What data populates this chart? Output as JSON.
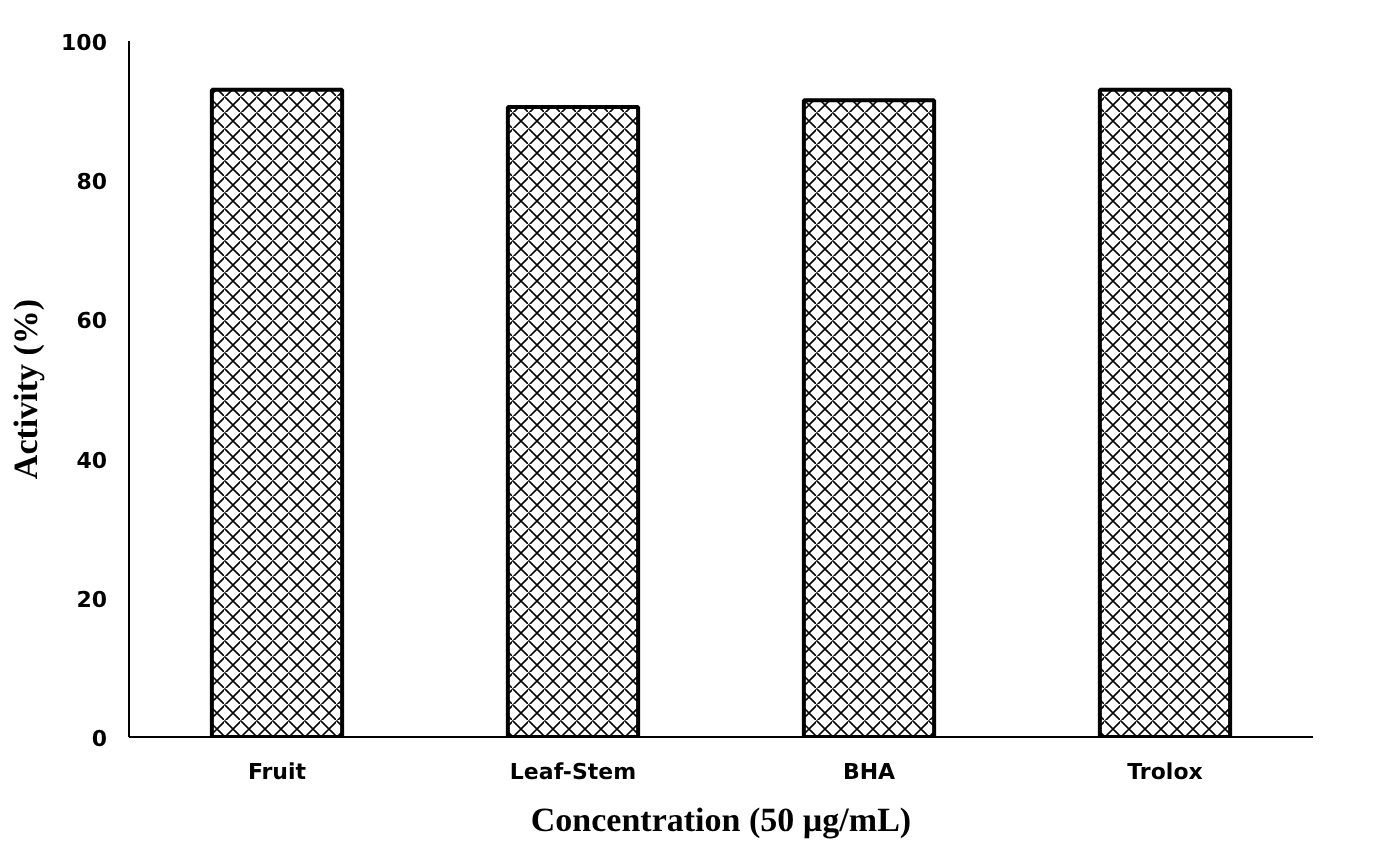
{
  "chart_data": {
    "type": "bar",
    "xlabel": "Concentration (50 µg/mL)",
    "ylabel": "Activity (%)",
    "categories": [
      "Fruit",
      "Leaf-Stem",
      "BHA",
      "Trolox"
    ],
    "values": [
      93,
      90.5,
      91.5,
      93
    ],
    "color": "#000000",
    "ylim": [
      0,
      100
    ],
    "yticks": [
      0,
      20,
      40,
      60,
      80,
      100
    ],
    "grid": false
  }
}
